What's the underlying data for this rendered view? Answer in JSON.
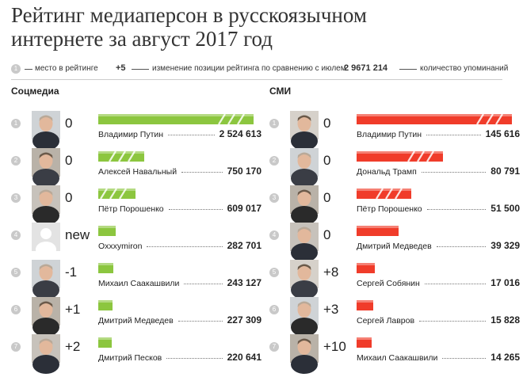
{
  "title_line1": "Рейтинг медиаперсон в русскоязычном",
  "title_line2": "интернете за август 2017 год",
  "legend": {
    "rank_example": "1",
    "rank_text": "место в рейтинге",
    "change_example": "+5",
    "change_text": "изменение позиции рейтинга по сравнению с июлем",
    "value_example": "2 9671 214",
    "value_text": "количество упоминаний"
  },
  "colors": {
    "social": "#8cc63f",
    "media": "#f03c2a"
  },
  "chart_data": [
    {
      "type": "bar",
      "title": "Соцмедиа",
      "xlim": [
        0,
        2524613
      ],
      "rows": [
        {
          "rank": "1",
          "change": "0",
          "name": "Владимир Путин",
          "value": 2524613,
          "value_label": "2 524 613",
          "avatar": "person-photo",
          "striped": true
        },
        {
          "rank": "2",
          "change": "0",
          "name": "Алексей Навальный",
          "value": 750170,
          "value_label": "750 170",
          "avatar": "person-photo",
          "striped": true
        },
        {
          "rank": "3",
          "change": "0",
          "name": "Пётр Порошенко",
          "value": 609017,
          "value_label": "609 017",
          "avatar": "person-photo",
          "striped": true
        },
        {
          "rank": "4",
          "change": "new",
          "name": "Oxxxymiron",
          "value": 282701,
          "value_label": "282 701",
          "avatar": "placeholder-avatar-icon",
          "striped": false
        },
        {
          "rank": "5",
          "change": "-1",
          "name": "Михаил Саакашвили",
          "value": 243127,
          "value_label": "243 127",
          "avatar": "person-photo",
          "striped": false
        },
        {
          "rank": "6",
          "change": "+1",
          "name": "Дмитрий Медведев",
          "value": 227309,
          "value_label": "227 309",
          "avatar": "person-photo",
          "striped": false
        },
        {
          "rank": "7",
          "change": "+2",
          "name": "Дмитрий Песков",
          "value": 220641,
          "value_label": "220 641",
          "avatar": "person-photo",
          "striped": false
        }
      ]
    },
    {
      "type": "bar",
      "title": "СМИ",
      "xlim": [
        0,
        145616
      ],
      "rows": [
        {
          "rank": "1",
          "change": "0",
          "name": "Владимир Путин",
          "value": 145616,
          "value_label": "145 616",
          "avatar": "person-photo",
          "striped": true
        },
        {
          "rank": "2",
          "change": "0",
          "name": "Дональд Трамп",
          "value": 80791,
          "value_label": "80 791",
          "avatar": "person-photo",
          "striped": true
        },
        {
          "rank": "3",
          "change": "0",
          "name": "Пётр Порошенко",
          "value": 51500,
          "value_label": "51 500",
          "avatar": "person-photo",
          "striped": true
        },
        {
          "rank": "4",
          "change": "0",
          "name": "Дмитрий Медведев",
          "value": 39329,
          "value_label": "39 329",
          "avatar": "person-photo",
          "striped": false
        },
        {
          "rank": "5",
          "change": "+8",
          "name": "Сергей Собянин",
          "value": 17016,
          "value_label": "17 016",
          "avatar": "person-photo",
          "striped": false
        },
        {
          "rank": "6",
          "change": "+3",
          "name": "Сергей Лавров",
          "value": 15828,
          "value_label": "15 828",
          "avatar": "person-photo",
          "striped": false
        },
        {
          "rank": "7",
          "change": "+10",
          "name": "Михаил Саакашвили",
          "value": 14265,
          "value_label": "14 265",
          "avatar": "person-photo",
          "striped": false
        }
      ]
    }
  ]
}
